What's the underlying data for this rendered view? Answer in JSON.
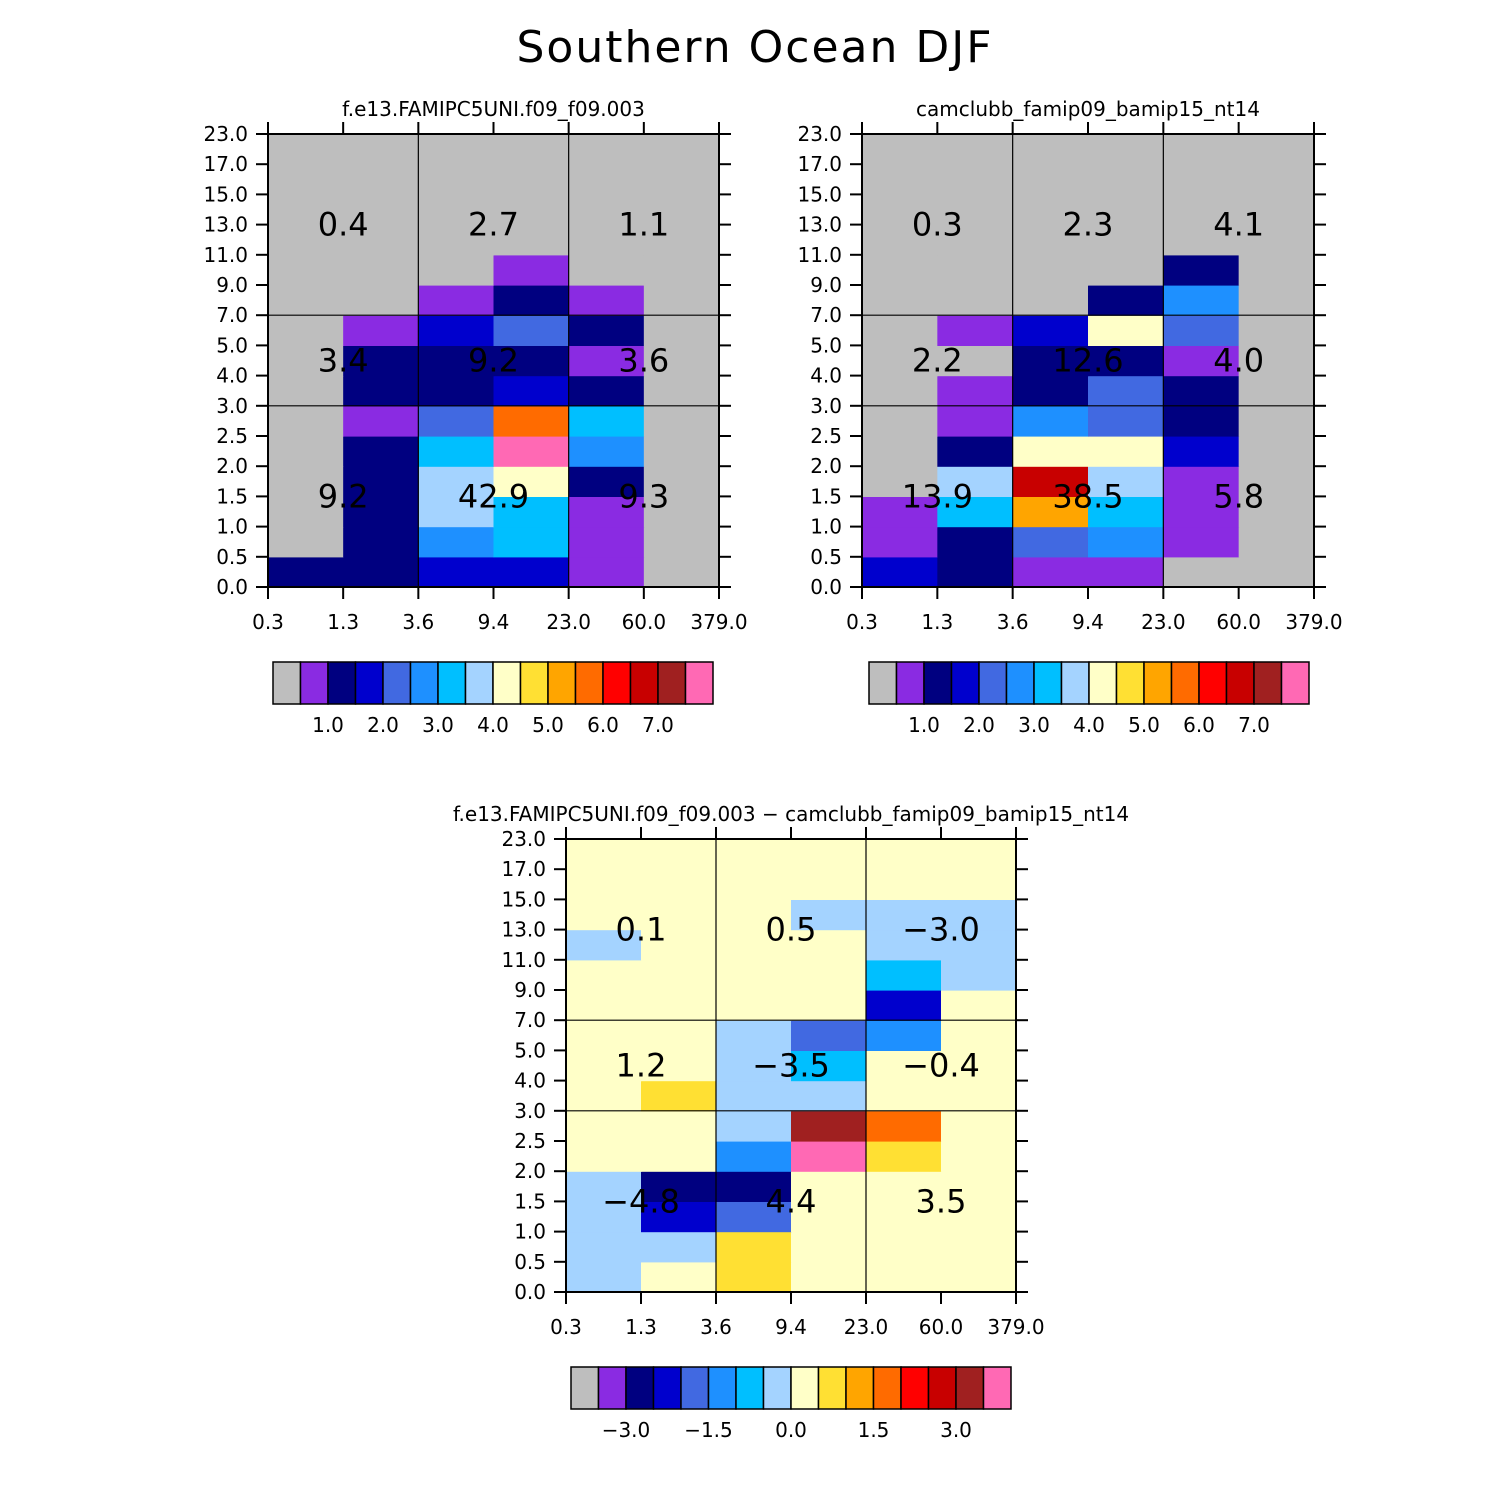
{
  "title": "Southern Ocean DJF",
  "palette": {
    "names": [
      "gray",
      "blueviolet",
      "navy",
      "mediumblue",
      "royalblue",
      "dodgerblue",
      "deepskyblue",
      "lightblue",
      "lightyellow",
      "gold",
      "orange",
      "darkorange",
      "red",
      "crimson",
      "brown",
      "hotpink"
    ],
    "colors": [
      "#bebebe",
      "#8a2be2",
      "#000080",
      "#0000cd",
      "#4169e1",
      "#1e90ff",
      "#00bfff",
      "#a4d3ff",
      "#ffffc8",
      "#ffe033",
      "#ffa500",
      "#ff6b00",
      "#ff0000",
      "#c80000",
      "#a02020",
      "#ff69b4"
    ]
  },
  "chart_data": [
    {
      "type": "heatmap",
      "title": "f.e13.FAMIPC5UNI.f09_f09.003",
      "x_tick_labels": [
        "0.3",
        "1.3",
        "3.6",
        "9.4",
        "23.0",
        "60.0",
        "379.0"
      ],
      "y_tick_labels": [
        "0.0",
        "0.5",
        "1.0",
        "1.5",
        "2.0",
        "2.5",
        "3.0",
        "4.0",
        "5.0",
        "7.0",
        "9.0",
        "11.0",
        "13.0",
        "15.0",
        "17.0",
        "23.0"
      ],
      "color_index_grid_bottom_to_top": [
        [
          2,
          2,
          3,
          3,
          1,
          0
        ],
        [
          0,
          2,
          5,
          6,
          1,
          0
        ],
        [
          0,
          2,
          7,
          6,
          1,
          0
        ],
        [
          0,
          2,
          7,
          8,
          2,
          0
        ],
        [
          0,
          2,
          6,
          15,
          5,
          0
        ],
        [
          0,
          1,
          4,
          11,
          6,
          0
        ],
        [
          0,
          2,
          2,
          3,
          2,
          0
        ],
        [
          0,
          2,
          2,
          2,
          1,
          0
        ],
        [
          0,
          1,
          3,
          4,
          2,
          0
        ],
        [
          0,
          0,
          1,
          2,
          1,
          0
        ],
        [
          0,
          0,
          0,
          1,
          0,
          0
        ],
        [
          0,
          0,
          0,
          0,
          0,
          0
        ],
        [
          0,
          0,
          0,
          0,
          0,
          0
        ],
        [
          0,
          0,
          0,
          0,
          0,
          0
        ],
        [
          0,
          0,
          0,
          0,
          0,
          0
        ]
      ],
      "region_values_top_to_bottom": [
        [
          "0.4",
          "2.7",
          "1.1"
        ],
        [
          "3.4",
          "9.2",
          "3.6"
        ],
        [
          "9.2",
          "42.9",
          "9.3"
        ]
      ],
      "colorbar_labels": [
        "1.0",
        "2.0",
        "3.0",
        "4.0",
        "5.0",
        "6.0",
        "7.0"
      ]
    },
    {
      "type": "heatmap",
      "title": "camclubb_famip09_bamip15_nt14",
      "x_tick_labels": [
        "0.3",
        "1.3",
        "3.6",
        "9.4",
        "23.0",
        "60.0",
        "379.0"
      ],
      "y_tick_labels": [
        "0.0",
        "0.5",
        "1.0",
        "1.5",
        "2.0",
        "2.5",
        "3.0",
        "4.0",
        "5.0",
        "7.0",
        "9.0",
        "11.0",
        "13.0",
        "15.0",
        "17.0",
        "23.0"
      ],
      "color_index_grid_bottom_to_top": [
        [
          3,
          2,
          1,
          1,
          0,
          0
        ],
        [
          1,
          2,
          4,
          5,
          1,
          0
        ],
        [
          1,
          6,
          10,
          6,
          1,
          0
        ],
        [
          0,
          7,
          13,
          7,
          1,
          0
        ],
        [
          0,
          2,
          8,
          8,
          3,
          0
        ],
        [
          0,
          1,
          5,
          4,
          2,
          0
        ],
        [
          0,
          1,
          2,
          4,
          2,
          0
        ],
        [
          0,
          0,
          2,
          2,
          1,
          0
        ],
        [
          0,
          1,
          3,
          8,
          4,
          0
        ],
        [
          0,
          0,
          0,
          2,
          5,
          0
        ],
        [
          0,
          0,
          0,
          0,
          2,
          0
        ],
        [
          0,
          0,
          0,
          0,
          0,
          0
        ],
        [
          0,
          0,
          0,
          0,
          0,
          0
        ],
        [
          0,
          0,
          0,
          0,
          0,
          0
        ],
        [
          0,
          0,
          0,
          0,
          0,
          0
        ]
      ],
      "region_values_top_to_bottom": [
        [
          "0.3",
          "2.3",
          "4.1"
        ],
        [
          "2.2",
          "12.6",
          "4.0"
        ],
        [
          "13.9",
          "38.5",
          "5.8"
        ]
      ],
      "colorbar_labels": [
        "1.0",
        "2.0",
        "3.0",
        "4.0",
        "5.0",
        "6.0",
        "7.0"
      ]
    },
    {
      "type": "heatmap",
      "title": "f.e13.FAMIPC5UNI.f09_f09.003 − camclubb_famip09_bamip15_nt14",
      "x_tick_labels": [
        "0.3",
        "1.3",
        "3.6",
        "9.4",
        "23.0",
        "60.0",
        "379.0"
      ],
      "y_tick_labels": [
        "0.0",
        "0.5",
        "1.0",
        "1.5",
        "2.0",
        "2.5",
        "3.0",
        "4.0",
        "5.0",
        "7.0",
        "9.0",
        "11.0",
        "13.0",
        "15.0",
        "17.0",
        "23.0"
      ],
      "color_index_grid_bottom_to_top": [
        [
          7,
          8,
          9,
          8,
          8,
          8
        ],
        [
          7,
          7,
          9,
          8,
          8,
          8
        ],
        [
          7,
          3,
          4,
          8,
          8,
          8
        ],
        [
          7,
          2,
          2,
          8,
          8,
          8
        ],
        [
          8,
          8,
          5,
          15,
          9,
          8
        ],
        [
          8,
          8,
          7,
          14,
          11,
          8
        ],
        [
          8,
          9,
          7,
          7,
          8,
          8
        ],
        [
          8,
          8,
          7,
          6,
          8,
          8
        ],
        [
          8,
          8,
          7,
          4,
          5,
          8
        ],
        [
          8,
          8,
          8,
          8,
          3,
          8
        ],
        [
          8,
          8,
          8,
          8,
          6,
          7
        ],
        [
          7,
          8,
          8,
          8,
          7,
          7
        ],
        [
          8,
          8,
          8,
          7,
          7,
          7
        ],
        [
          8,
          8,
          8,
          8,
          8,
          8
        ],
        [
          8,
          8,
          8,
          8,
          8,
          8
        ]
      ],
      "region_values_top_to_bottom": [
        [
          "0.1",
          "0.5",
          "−3.0"
        ],
        [
          "1.2",
          "−3.5",
          "−0.4"
        ],
        [
          "−4.8",
          "4.4",
          "3.5"
        ]
      ],
      "colorbar_labels": [
        "−3.0",
        "−1.5",
        "0.0",
        "1.5",
        "3.0"
      ]
    }
  ]
}
